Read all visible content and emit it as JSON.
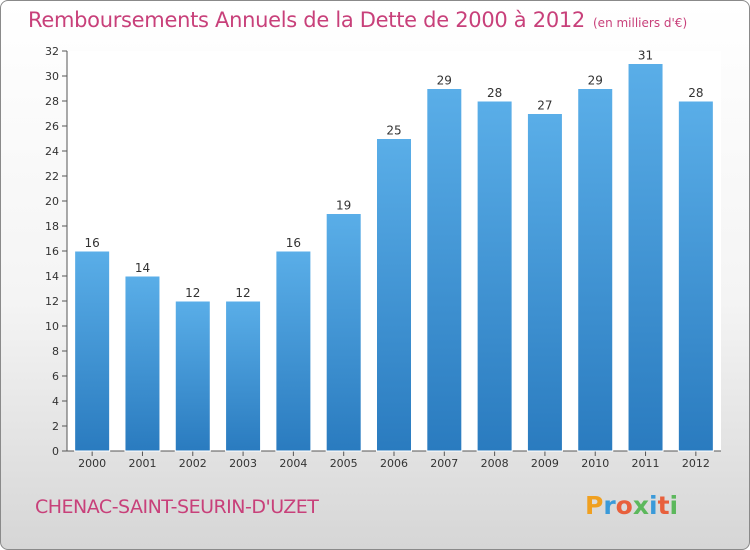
{
  "header": {
    "title": "Remboursements Annuels de la Dette de 2000 à 2012",
    "unit": "(en milliers d'€)"
  },
  "footer": {
    "city": "CHENAC-SAINT-SEURIN-D'UZET",
    "logo": "Proxiti"
  },
  "colors": {
    "accent": "#c8407a",
    "bar_light": "#5aaee8",
    "bar_dark": "#2a7bbf"
  },
  "chart_data": {
    "type": "bar",
    "categories": [
      "2000",
      "2001",
      "2002",
      "2003",
      "2004",
      "2005",
      "2006",
      "2007",
      "2008",
      "2009",
      "2010",
      "2011",
      "2012"
    ],
    "values": [
      16,
      14,
      12,
      12,
      16,
      19,
      25,
      29,
      28,
      27,
      29,
      31,
      28
    ],
    "title": "Remboursements Annuels de la Dette de 2000 à 2012",
    "ylim": [
      0,
      32
    ],
    "yticks": [
      0,
      2,
      4,
      6,
      8,
      10,
      12,
      14,
      16,
      18,
      20,
      22,
      24,
      26,
      28,
      30,
      32
    ],
    "grid": false,
    "legend": "none"
  }
}
